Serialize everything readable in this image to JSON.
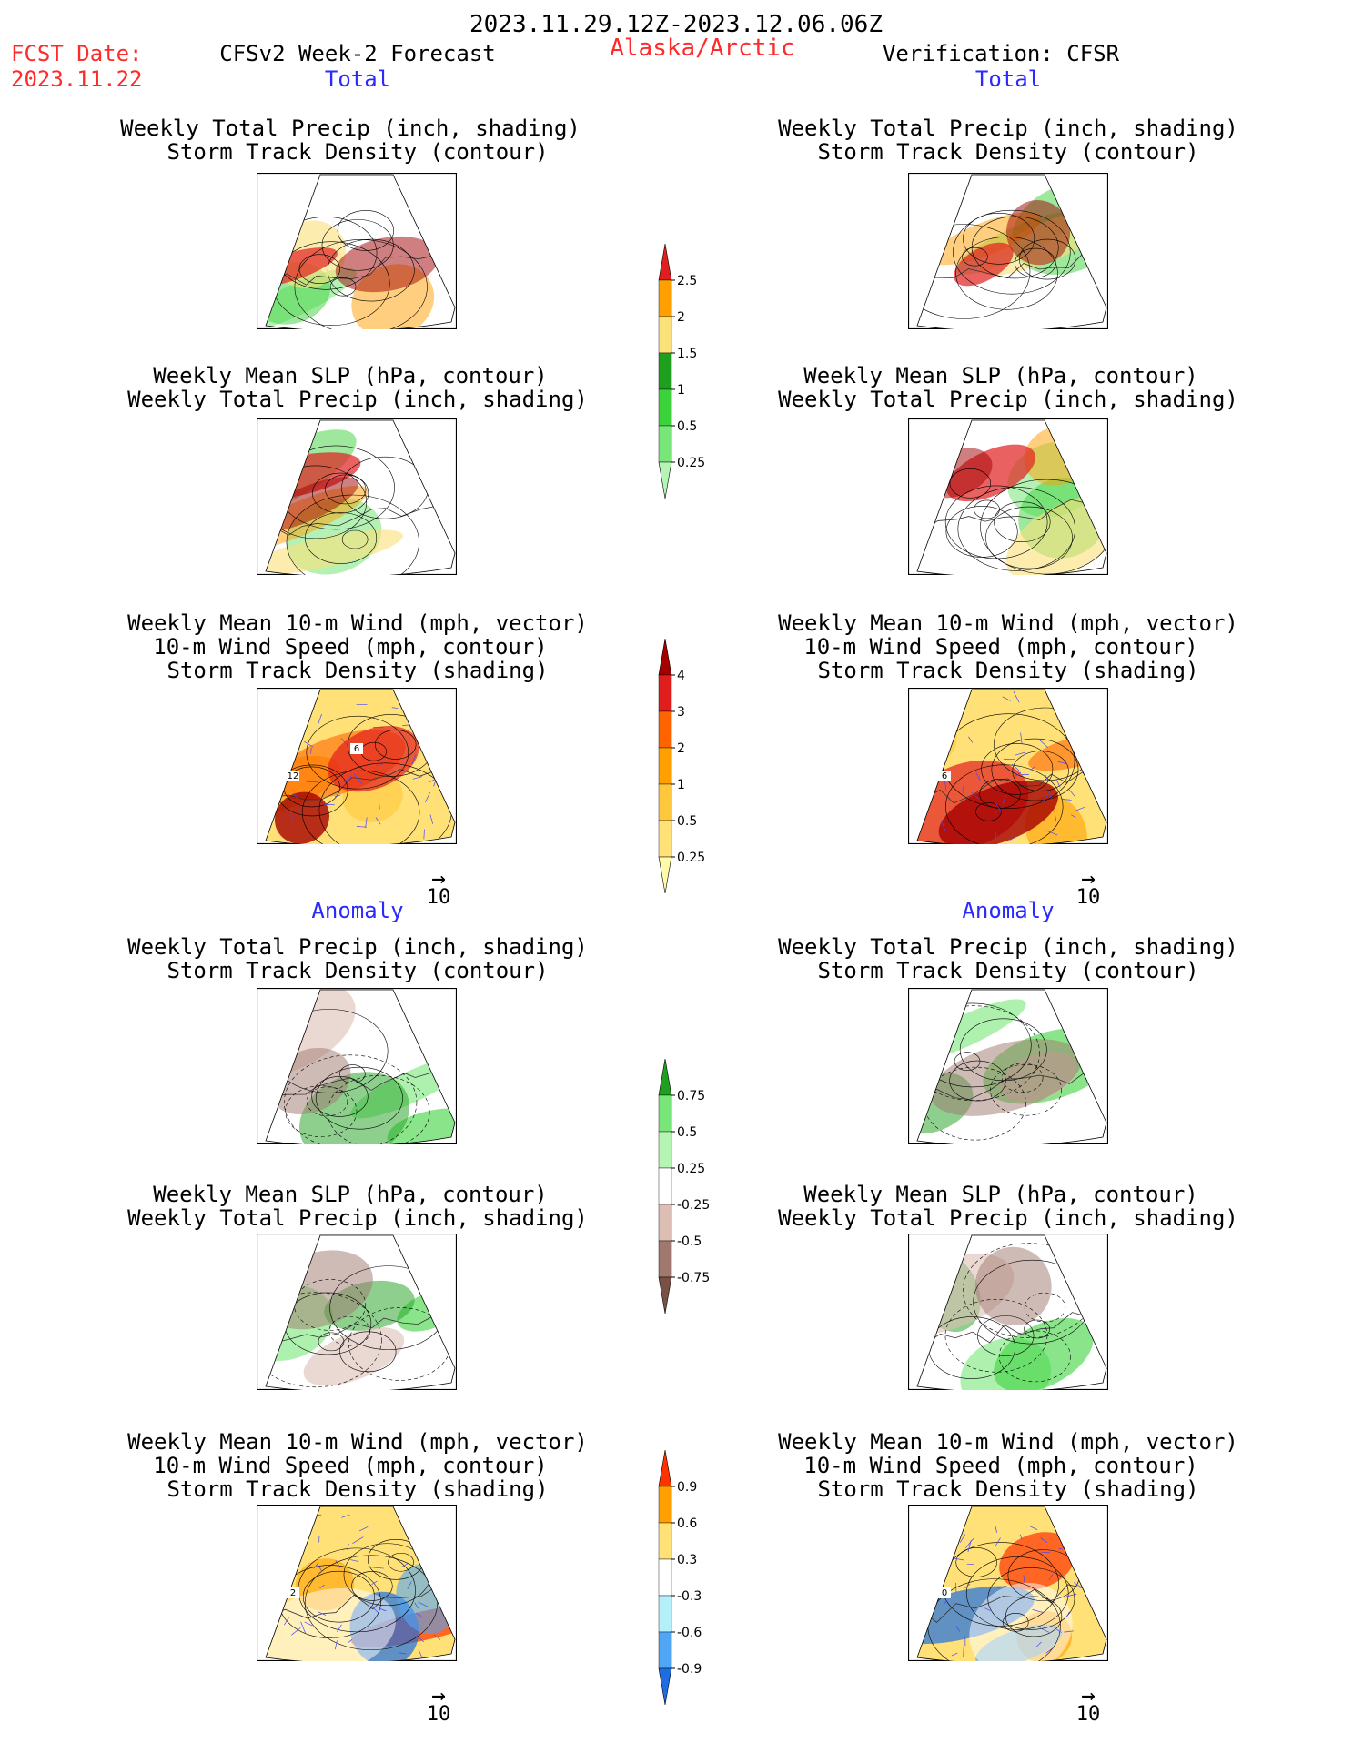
{
  "header": {
    "period": "2023.11.29.12Z-2023.12.06.06Z",
    "fcst_label": "FCST Date:",
    "fcst_date": "2023.11.22",
    "region": "Alaska/Arctic",
    "left_title": "CFSv2 Week-2 Forecast",
    "right_title": "Verification: CFSR"
  },
  "sections": {
    "total": "Total",
    "anomaly": "Anomaly"
  },
  "panel_titles": {
    "precip_storm": [
      "Weekly Total Precip (inch, shading)",
      "Storm Track Density (contour)"
    ],
    "slp_precip": [
      "Weekly Mean SLP (hPa, contour)",
      "Weekly Total Precip (inch, shading)"
    ],
    "wind_storm": [
      "Weekly Mean 10-m Wind (mph, vector)",
      "10-m Wind Speed (mph, contour)",
      "Storm Track Density (shading)"
    ]
  },
  "vector_ref": {
    "arrow": "→",
    "value": "10"
  },
  "colorbars": {
    "precip_total": {
      "labels": [
        "0.25",
        "0.5",
        "1",
        "1.5",
        "2",
        "2.5"
      ],
      "colors": [
        "#b4f5b4",
        "#78e678",
        "#3cd23c",
        "#1ea01e",
        "#fae17a",
        "#ffa000",
        "#e11e1e"
      ]
    },
    "storm_total": {
      "labels": [
        "0.25",
        "0.5",
        "1",
        "2",
        "3",
        "4"
      ],
      "colors": [
        "#fffaaa",
        "#ffe178",
        "#ffc83c",
        "#ffa000",
        "#ff6400",
        "#e11e1e",
        "#a50000"
      ]
    },
    "precip_anom": {
      "labels": [
        "-0.75",
        "-0.5",
        "-0.25",
        "0.25",
        "0.5",
        "0.75"
      ],
      "colors": [
        "#785046",
        "#a0786e",
        "#dcbeb4",
        "#ffffff",
        "#b4f5b4",
        "#78e678",
        "#1ea01e"
      ]
    },
    "storm_anom": {
      "labels": [
        "-0.9",
        "-0.6",
        "-0.3",
        "0.3",
        "0.6",
        "0.9"
      ],
      "colors": [
        "#1e6ee1",
        "#50a5f5",
        "#b4f0fa",
        "#ffffff",
        "#ffe178",
        "#ffa000",
        "#ff3200"
      ]
    }
  },
  "contour_labels": {
    "wind_total_left": [
      "12",
      "6"
    ],
    "wind_total_right": [
      "6"
    ],
    "wind_anom_left": [
      "2"
    ],
    "wind_anom_right": [
      "0"
    ]
  }
}
